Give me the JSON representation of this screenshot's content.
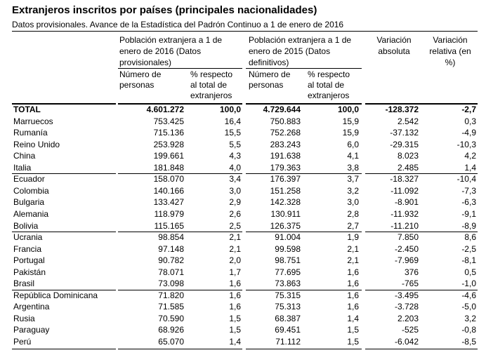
{
  "header": {
    "title": "Extranjeros inscritos por países (principales nacionalidades)",
    "subtitle": "Datos provisionales. Avance de la Estadística del Padrón Continuo a 1 de enero de 2016"
  },
  "table": {
    "group_headers": [
      "Población extranjera a 1 de enero de 2016 (Datos provisionales)",
      "Población extranjera a 1 de enero de 2015 (Datos definitivos)",
      "Variación absoluta",
      "Variación relativa (en %)"
    ],
    "sub_headers": [
      "Número de personas",
      "% respecto al total de extranjeros",
      "Número de personas",
      "% respecto al total de extranjeros"
    ],
    "total": [
      "TOTAL",
      "4.601.272",
      "100,0",
      "4.729.644",
      "100,0",
      "-128.372",
      "-2,7"
    ],
    "groups": [
      [
        [
          "Marruecos",
          "753.425",
          "16,4",
          "750.883",
          "15,9",
          "2.542",
          "0,3"
        ],
        [
          "Rumanía",
          "715.136",
          "15,5",
          "752.268",
          "15,9",
          "-37.132",
          "-4,9"
        ],
        [
          "Reino Unido",
          "253.928",
          "5,5",
          "283.243",
          "6,0",
          "-29.315",
          "-10,3"
        ],
        [
          "China",
          "199.661",
          "4,3",
          "191.638",
          "4,1",
          "8.023",
          "4,2"
        ],
        [
          "Italia",
          "181.848",
          "4,0",
          "179.363",
          "3,8",
          "2.485",
          "1,4"
        ]
      ],
      [
        [
          "Ecuador",
          "158.070",
          "3,4",
          "176.397",
          "3,7",
          "-18.327",
          "-10,4"
        ],
        [
          "Colombia",
          "140.166",
          "3,0",
          "151.258",
          "3,2",
          "-11.092",
          "-7,3"
        ],
        [
          "Bulgaria",
          "133.427",
          "2,9",
          "142.328",
          "3,0",
          "-8.901",
          "-6,3"
        ],
        [
          "Alemania",
          "118.979",
          "2,6",
          "130.911",
          "2,8",
          "-11.932",
          "-9,1"
        ],
        [
          "Bolivia",
          "115.165",
          "2,5",
          "126.375",
          "2,7",
          "-11.210",
          "-8,9"
        ]
      ],
      [
        [
          "Ucrania",
          "98.854",
          "2,1",
          "91.004",
          "1,9",
          "7.850",
          "8,6"
        ],
        [
          "Francia",
          "97.148",
          "2,1",
          "99.598",
          "2,1",
          "-2.450",
          "-2,5"
        ],
        [
          "Portugal",
          "90.782",
          "2,0",
          "98.751",
          "2,1",
          "-7.969",
          "-8,1"
        ],
        [
          "Pakistán",
          "78.071",
          "1,7",
          "77.695",
          "1,6",
          "376",
          "0,5"
        ],
        [
          "Brasil",
          "73.098",
          "1,6",
          "73.863",
          "1,6",
          "-765",
          "-1,0"
        ]
      ],
      [
        [
          "República Dominicana",
          "71.820",
          "1,6",
          "75.315",
          "1,6",
          "-3.495",
          "-4,6"
        ],
        [
          "Argentina",
          "71.585",
          "1,6",
          "75.313",
          "1,6",
          "-3.728",
          "-5,0"
        ],
        [
          "Rusia",
          "70.590",
          "1,5",
          "68.387",
          "1,4",
          "2.203",
          "3,2"
        ],
        [
          "Paraguay",
          "68.926",
          "1,5",
          "69.451",
          "1,5",
          "-525",
          "-0,8"
        ],
        [
          "Perú",
          "65.070",
          "1,4",
          "71.112",
          "1,5",
          "-6.042",
          "-8,5"
        ]
      ]
    ]
  }
}
